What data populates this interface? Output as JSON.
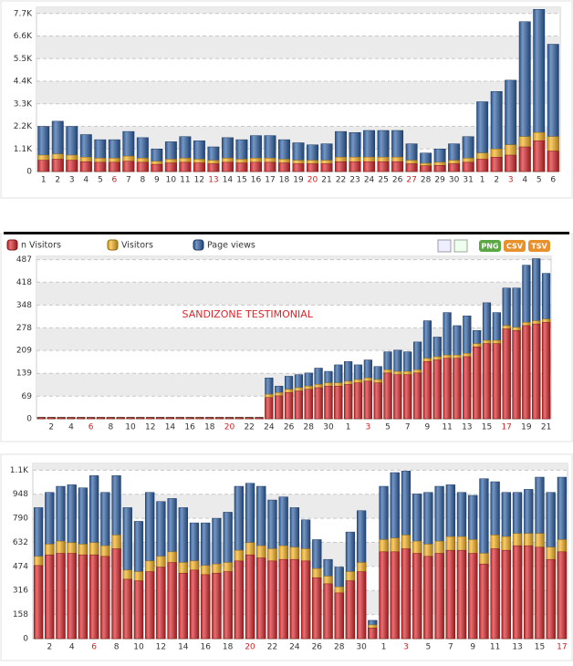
{
  "chart_data": [
    {
      "type": "bar",
      "categories": [
        "1",
        "2",
        "3",
        "4",
        "5",
        "6",
        "7",
        "8",
        "9",
        "10",
        "11",
        "12",
        "13",
        "14",
        "15",
        "16",
        "17",
        "18",
        "19",
        "20",
        "21",
        "22",
        "23",
        "24",
        "25",
        "26",
        "27",
        "28",
        "29",
        "30",
        "31",
        "1",
        "2",
        "3",
        "4",
        "5",
        "6"
      ],
      "highlight_categories": [
        5,
        12,
        19,
        26,
        33
      ],
      "highlight_color": "#cc2222",
      "series": [
        {
          "color": "#d9262b",
          "values": [
            550,
            600,
            550,
            480,
            450,
            450,
            500,
            450,
            350,
            420,
            450,
            420,
            380,
            450,
            420,
            450,
            450,
            420,
            380,
            380,
            380,
            480,
            480,
            480,
            480,
            480,
            380,
            280,
            300,
            380,
            450,
            600,
            700,
            800,
            1200,
            1500,
            1000
          ]
        },
        {
          "color": "#f5b120",
          "values": [
            800,
            850,
            800,
            700,
            650,
            650,
            750,
            650,
            500,
            600,
            650,
            600,
            550,
            650,
            600,
            650,
            650,
            600,
            550,
            550,
            550,
            700,
            700,
            700,
            700,
            700,
            550,
            400,
            450,
            550,
            650,
            900,
            1100,
            1300,
            1700,
            1900,
            1700
          ]
        },
        {
          "color": "#2d5fa3",
          "values": [
            2200,
            2450,
            2200,
            1800,
            1550,
            1550,
            1950,
            1650,
            1100,
            1450,
            1700,
            1500,
            1200,
            1650,
            1550,
            1750,
            1750,
            1550,
            1400,
            1300,
            1350,
            1950,
            1900,
            2000,
            2000,
            2000,
            1350,
            900,
            1100,
            1350,
            1700,
            3400,
            3900,
            4450,
            7300,
            7900,
            6200
          ]
        }
      ],
      "ylim": [
        0,
        8000
      ],
      "yticks": [
        0,
        {
          "value": 1100,
          "label": "1.1K"
        },
        {
          "value": 2200,
          "label": "2.2K"
        },
        {
          "value": 3300,
          "label": "3.3K"
        },
        {
          "value": 4400,
          "label": "4.4K"
        },
        {
          "value": 5500,
          "label": "5.5K"
        },
        {
          "value": 6600,
          "label": "6.6K"
        },
        {
          "value": 7700,
          "label": "7.7K"
        }
      ],
      "grid": true
    },
    {
      "type": "bar",
      "categories": [
        null,
        "2",
        null,
        "4",
        null,
        "6",
        null,
        "8",
        null,
        "10",
        null,
        "12",
        null,
        "14",
        null,
        "16",
        null,
        "18",
        null,
        "20",
        null,
        "22",
        null,
        "24",
        null,
        "26",
        null,
        "28",
        null,
        "30",
        null,
        "1",
        null,
        "3",
        null,
        "5",
        null,
        "7",
        null,
        "9",
        null,
        "11",
        null,
        "13",
        null,
        "15",
        null,
        "17",
        null,
        "19",
        null,
        "21"
      ],
      "highlight_categories": [
        5,
        19,
        33,
        47
      ],
      "highlight_color": "#cc2222",
      "annotation": "SANDIZONE TESTIMONIAL",
      "buttons": [
        "PNG",
        "CSV",
        "TSV"
      ],
      "legend": "top-left",
      "series": [
        {
          "name": "n Visitors",
          "color": "#d9262b",
          "values": [
            3,
            3,
            3,
            3,
            3,
            3,
            3,
            3,
            3,
            3,
            3,
            3,
            3,
            3,
            3,
            3,
            3,
            3,
            3,
            3,
            3,
            3,
            3,
            65,
            70,
            80,
            85,
            90,
            95,
            100,
            100,
            105,
            110,
            115,
            110,
            140,
            135,
            135,
            140,
            175,
            180,
            185,
            185,
            190,
            220,
            230,
            230,
            275,
            270,
            285,
            290,
            295
          ]
        },
        {
          "name": "Visitors",
          "color": "#f5b120",
          "values": [
            4,
            4,
            4,
            4,
            4,
            4,
            4,
            4,
            4,
            4,
            4,
            4,
            4,
            4,
            4,
            4,
            4,
            4,
            4,
            4,
            4,
            4,
            4,
            75,
            80,
            90,
            95,
            100,
            105,
            110,
            110,
            115,
            120,
            125,
            120,
            150,
            145,
            145,
            150,
            185,
            190,
            195,
            195,
            200,
            230,
            240,
            240,
            285,
            280,
            295,
            300,
            305
          ]
        },
        {
          "name": "Page views",
          "color": "#2d5fa3",
          "values": [
            5,
            5,
            5,
            5,
            5,
            5,
            5,
            5,
            5,
            5,
            5,
            5,
            5,
            5,
            5,
            5,
            5,
            5,
            5,
            5,
            5,
            5,
            5,
            125,
            100,
            130,
            135,
            140,
            155,
            145,
            165,
            175,
            165,
            180,
            160,
            205,
            210,
            205,
            235,
            300,
            250,
            325,
            285,
            315,
            270,
            355,
            325,
            400,
            400,
            470,
            490,
            445
          ]
        }
      ],
      "ylim": [
        0,
        497
      ],
      "yticks": [
        0,
        69,
        139,
        209,
        278,
        348,
        418,
        487
      ],
      "grid": true
    },
    {
      "type": "bar",
      "categories": [
        null,
        "2",
        null,
        "4",
        null,
        "6",
        null,
        "8",
        null,
        "10",
        null,
        "12",
        null,
        "14",
        null,
        "16",
        null,
        "18",
        null,
        "20",
        null,
        "22",
        null,
        "24",
        null,
        "26",
        null,
        "28",
        null,
        "30",
        null,
        "1",
        null,
        "3",
        null,
        "5",
        null,
        "7",
        null,
        "9",
        null,
        "11",
        null,
        "13",
        null,
        "15",
        null,
        "17"
      ],
      "highlight_categories": [
        5,
        19,
        33,
        47
      ],
      "highlight_color": "#cc2222",
      "series": [
        {
          "color": "#d9262b",
          "values": [
            480,
            550,
            560,
            560,
            550,
            550,
            540,
            590,
            390,
            380,
            440,
            470,
            500,
            430,
            450,
            420,
            430,
            440,
            510,
            550,
            530,
            510,
            520,
            520,
            510,
            400,
            360,
            300,
            380,
            440,
            70,
            570,
            570,
            590,
            560,
            540,
            560,
            580,
            580,
            560,
            490,
            590,
            580,
            610,
            610,
            600,
            520,
            570
          ]
        },
        {
          "color": "#f5b120",
          "values": [
            540,
            620,
            640,
            630,
            620,
            630,
            610,
            680,
            450,
            440,
            510,
            540,
            570,
            500,
            510,
            480,
            490,
            500,
            580,
            630,
            610,
            590,
            610,
            600,
            590,
            460,
            410,
            340,
            440,
            500,
            90,
            650,
            660,
            680,
            640,
            620,
            640,
            670,
            670,
            650,
            560,
            680,
            670,
            690,
            690,
            690,
            600,
            650
          ]
        },
        {
          "color": "#2d5fa3",
          "values": [
            860,
            960,
            1000,
            1010,
            990,
            1070,
            960,
            1070,
            860,
            770,
            960,
            900,
            920,
            860,
            760,
            760,
            790,
            830,
            1000,
            1020,
            1000,
            910,
            930,
            860,
            780,
            650,
            520,
            470,
            700,
            840,
            120,
            1000,
            1090,
            1100,
            950,
            960,
            1000,
            1010,
            960,
            940,
            1050,
            1030,
            960,
            960,
            980,
            1060,
            960,
            1060
          ]
        }
      ],
      "ylim": [
        0,
        1150
      ],
      "yticks": [
        0,
        158,
        316,
        474,
        632,
        790,
        948,
        {
          "value": 1106,
          "label": "1.1K"
        }
      ],
      "grid": true
    }
  ]
}
